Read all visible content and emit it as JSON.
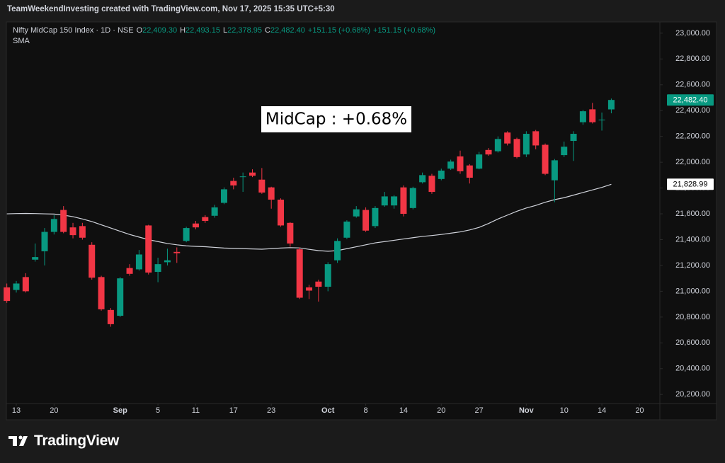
{
  "chart_data": {
    "type": "candlestick",
    "header": "TeamWeekendInvesting created with TradingView.com, Nov 17, 2025 15:35 UTC+5:30",
    "legend": {
      "symbol": "Nifty MidCap 150 Index · 1D · NSE",
      "ohlc": [
        {
          "key": "O",
          "value": "22,409.30"
        },
        {
          "key": "H",
          "value": "22,493.15"
        },
        {
          "key": "L",
          "value": "22,378.95"
        },
        {
          "key": "C",
          "value": "22,482.40"
        }
      ],
      "change": [
        "+151.15 (+0.68%)",
        "+151.15 (+0.68%)"
      ]
    },
    "annotation": "MidCap : +0.68%",
    "x": [
      "Aug 12",
      "Aug 13",
      "Aug 14",
      "Aug 18",
      "Aug 19",
      "Aug 20",
      "Aug 21",
      "Aug 22",
      "Aug 25",
      "Aug 26",
      "Aug 28",
      "Aug 29",
      "Sep 1",
      "Sep 2",
      "Sep 3",
      "Sep 4",
      "Sep 5",
      "Sep 8",
      "Sep 9",
      "Sep 10",
      "Sep 11",
      "Sep 12",
      "Sep 15",
      "Sep 16",
      "Sep 17",
      "Sep 18",
      "Sep 19",
      "Sep 22",
      "Sep 23",
      "Sep 24",
      "Sep 25",
      "Sep 26",
      "Sep 29",
      "Sep 30",
      "Oct 1",
      "Oct 3",
      "Oct 6",
      "Oct 7",
      "Oct 8",
      "Oct 9",
      "Oct 10",
      "Oct 13",
      "Oct 14",
      "Oct 15",
      "Oct 16",
      "Oct 17",
      "Oct 20",
      "Oct 21",
      "Oct 23",
      "Oct 24",
      "Oct 27",
      "Oct 28",
      "Oct 29",
      "Oct 30",
      "Oct 31",
      "Nov 3",
      "Nov 4",
      "Nov 6",
      "Nov 7",
      "Nov 10",
      "Nov 11",
      "Nov 12",
      "Nov 13",
      "Nov 14",
      "Nov 17",
      "Nov 18",
      "Nov 19",
      "Nov 20"
    ],
    "open": [
      21030,
      21010,
      21110,
      21245,
      21310,
      21460,
      21630,
      21495,
      21505,
      21360,
      21110,
      20855,
      20810,
      21180,
      21170,
      21510,
      21150,
      21225,
      21305,
      21390,
      21525,
      21575,
      21585,
      21685,
      21855,
      21885,
      21920,
      21865,
      21805,
      21710,
      21530,
      21325,
      21030,
      21075,
      21035,
      21240,
      21415,
      21580,
      21630,
      21505,
      21665,
      21665,
      21805,
      21645,
      21845,
      21895,
      21870,
      21950,
      22045,
      21975,
      21950,
      22095,
      22085,
      22230,
      22180,
      22060,
      22240,
      22135,
      21860,
      22055,
      22165,
      22310,
      22410,
      22325,
      22409.3,
      null,
      null,
      null
    ],
    "high": [
      21060,
      21080,
      21140,
      21370,
      21490,
      21590,
      21660,
      21530,
      21530,
      21380,
      21120,
      20870,
      21110,
      21210,
      21320,
      21515,
      21260,
      21330,
      21340,
      21500,
      21545,
      21590,
      21670,
      21805,
      21880,
      21920,
      21945,
      21955,
      21810,
      21720,
      21535,
      21340,
      21050,
      21090,
      21225,
      21410,
      21550,
      21660,
      21650,
      21660,
      21770,
      21745,
      21820,
      21810,
      21920,
      21910,
      21950,
      22020,
      22090,
      21985,
      22080,
      22110,
      22200,
      22240,
      22190,
      22240,
      22250,
      22145,
      22025,
      22160,
      22240,
      22405,
      22460,
      22385,
      22493.15,
      null,
      null,
      null
    ],
    "low": [
      20910,
      20990,
      20990,
      21230,
      21200,
      21440,
      21450,
      21410,
      21400,
      21090,
      20850,
      20725,
      20800,
      21120,
      21160,
      21130,
      21070,
      21200,
      21220,
      21380,
      21480,
      21530,
      21570,
      21675,
      21790,
      21770,
      21885,
      21755,
      21640,
      21500,
      21345,
      20940,
      20940,
      20920,
      21000,
      21220,
      21405,
      21570,
      21460,
      21490,
      21655,
      21640,
      21580,
      21635,
      21835,
      21755,
      21860,
      21940,
      21910,
      21835,
      21945,
      22050,
      22075,
      22130,
      22030,
      22040,
      22100,
      21900,
      21690,
      22040,
      22010,
      22290,
      22300,
      22245,
      22378.95,
      null,
      null,
      null
    ],
    "close": [
      20925,
      21060,
      21000,
      21265,
      21460,
      21560,
      21460,
      21435,
      21415,
      21105,
      20860,
      20745,
      21100,
      21135,
      21285,
      21145,
      21210,
      21240,
      21295,
      21490,
      21495,
      21545,
      21650,
      21790,
      21820,
      21890,
      21895,
      21765,
      21710,
      21510,
      21370,
      20950,
      21005,
      21035,
      21210,
      21390,
      21540,
      21635,
      21470,
      21645,
      21735,
      21735,
      21600,
      21800,
      21900,
      21770,
      21935,
      22005,
      21930,
      21880,
      22060,
      22060,
      22180,
      22145,
      22040,
      22220,
      22130,
      21910,
      22015,
      22120,
      22220,
      22395,
      22310,
      22330,
      22482.4,
      null,
      null,
      null
    ],
    "up_color": "#089981",
    "down_color": "#f23645",
    "sma": {
      "name": "SMA",
      "color": "#d1d4dc",
      "values": [
        21600,
        21602,
        21603,
        21602,
        21600,
        21598,
        21590,
        21578,
        21560,
        21540,
        21515,
        21490,
        21465,
        21440,
        21420,
        21400,
        21385,
        21370,
        21360,
        21352,
        21348,
        21345,
        21340,
        21335,
        21332,
        21330,
        21328,
        21326,
        21330,
        21335,
        21338,
        21336,
        21325,
        21315,
        21310,
        21315,
        21330,
        21345,
        21360,
        21375,
        21385,
        21395,
        21405,
        21415,
        21425,
        21432,
        21440,
        21450,
        21460,
        21475,
        21495,
        21525,
        21560,
        21590,
        21620,
        21645,
        21665,
        21690,
        21710,
        21725,
        21745,
        21765,
        21785,
        21805,
        21828.99,
        null,
        null,
        null
      ]
    },
    "price_tags": [
      {
        "value": 22482.4,
        "label": "22,482.40",
        "background": "#089981",
        "text_color": "#ffffff"
      },
      {
        "value": 21828.99,
        "label": "21,828.99",
        "background": "#ffffff",
        "text_color": "#000000"
      }
    ],
    "ylim": [
      20130,
      23065
    ],
    "yticks": [
      {
        "value": 20200,
        "label": "20,200.00"
      },
      {
        "value": 20400,
        "label": "20,400.00"
      },
      {
        "value": 20600,
        "label": "20,600.00"
      },
      {
        "value": 20800,
        "label": "20,800.00"
      },
      {
        "value": 21000,
        "label": "21,000.00"
      },
      {
        "value": 21200,
        "label": "21,200.00"
      },
      {
        "value": 21400,
        "label": "21,400.00"
      },
      {
        "value": 21600,
        "label": "21,600.00"
      },
      {
        "value": 21800,
        "label": "21,800.00"
      },
      {
        "value": 22000,
        "label": "22,000.00"
      },
      {
        "value": 22200,
        "label": "22,200.00"
      },
      {
        "value": 22400,
        "label": "22,400.00"
      },
      {
        "value": 22600,
        "label": "22,600.00"
      },
      {
        "value": 22800,
        "label": "22,800.00"
      },
      {
        "value": 23000,
        "label": "23,000.00"
      }
    ],
    "xticks": [
      {
        "value": "Aug 13",
        "label": "13"
      },
      {
        "value": "Aug 20",
        "label": "20"
      },
      {
        "value": "Sep 1",
        "label": "Sep"
      },
      {
        "value": "Sep 5",
        "label": "5"
      },
      {
        "value": "Sep 11",
        "label": "11"
      },
      {
        "value": "Sep 17",
        "label": "17"
      },
      {
        "value": "Sep 23",
        "label": "23"
      },
      {
        "value": "Oct 1",
        "label": "Oct"
      },
      {
        "value": "Oct 8",
        "label": "8"
      },
      {
        "value": "Oct 14",
        "label": "14"
      },
      {
        "value": "Oct 20",
        "label": "20"
      },
      {
        "value": "Oct 27",
        "label": "27"
      },
      {
        "value": "Nov 3",
        "label": "Nov"
      },
      {
        "value": "Nov 10",
        "label": "10"
      },
      {
        "value": "Nov 14",
        "label": "14"
      },
      {
        "value": "Nov 20",
        "label": "20"
      }
    ],
    "grid": false
  },
  "brand": "TradingView"
}
